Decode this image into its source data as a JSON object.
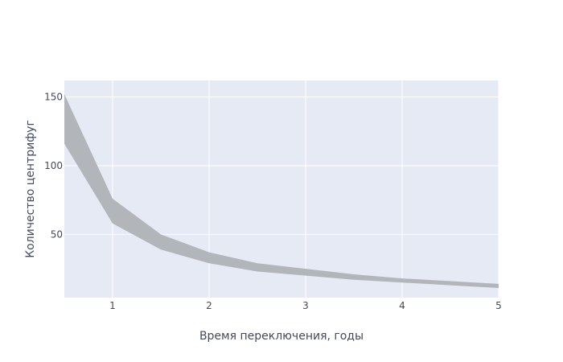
{
  "chart_data": {
    "type": "area",
    "xlabel": "Время переключения, годы",
    "ylabel": "Количество центрифуг",
    "xlim": [
      0.5,
      5
    ],
    "ylim": [
      4,
      162
    ],
    "xticks": [
      1,
      2,
      3,
      4,
      5
    ],
    "yticks": [
      50,
      100,
      150
    ],
    "grid": true,
    "colors": {
      "band": "#b2b5ba",
      "plot_bg": "#e5eaf4",
      "grid": "#ffffff",
      "text": "#444a5c"
    },
    "band": {
      "x": [
        0.5,
        1,
        1.5,
        2,
        2.5,
        3,
        3.5,
        4,
        4.5,
        5
      ],
      "upper": [
        152,
        76,
        50,
        37,
        29,
        25,
        21,
        18,
        16,
        14
      ],
      "lower": [
        116,
        58,
        39,
        29,
        23,
        20,
        17,
        15,
        13,
        11
      ]
    }
  }
}
